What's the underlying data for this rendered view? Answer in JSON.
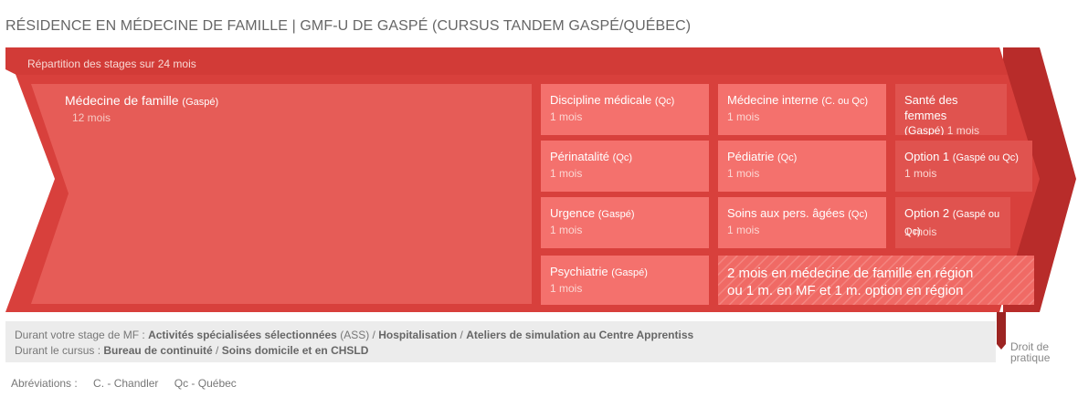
{
  "title": "RÉSIDENCE EN MÉDECINE DE FAMILLE | GMF-U DE GASPÉ (CURSUS TANDEM GASPÉ/QUÉBEC)",
  "period_label": "Répartition des stages sur 24 mois",
  "blocks": {
    "mf": {
      "name": "Médecine de famille",
      "location": "(Gaspé)",
      "duration": "12 mois"
    },
    "discipline": {
      "name": "Discipline médicale",
      "location": "(Qc)",
      "duration": "1 mois"
    },
    "med_interne": {
      "name": "Médecine interne",
      "location": "(C. ou Qc)",
      "duration": "1 mois"
    },
    "sante_femmes": {
      "name": "Santé des femmes",
      "location": "(Gaspé)",
      "duration": "1 mois"
    },
    "perinatalite": {
      "name": "Périnatalité",
      "location": "(Qc)",
      "duration": "1 mois"
    },
    "pediatrie": {
      "name": "Pédiatrie",
      "location": "(Qc)",
      "duration": "1 mois"
    },
    "option1": {
      "name": "Option 1",
      "location": "(Gaspé ou Qc)",
      "duration": "1 mois"
    },
    "urgence": {
      "name": "Urgence",
      "location": "(Gaspé)",
      "duration": "1 mois"
    },
    "soins_ages": {
      "name": "Soins aux pers. âgées",
      "location": "(Qc)",
      "duration": "1 mois"
    },
    "option2": {
      "name": "Option 2",
      "location": "(Gaspé ou Qc)",
      "duration": "1 mois"
    },
    "psychiatrie": {
      "name": "Psychiatrie",
      "location": "(Gaspé)",
      "duration": "1 mois"
    },
    "region": {
      "line1": "2 mois en médecine de famille en région",
      "line2": "ou 1 m. en MF et 1 m. option en région"
    }
  },
  "info_bar": {
    "line1": {
      "prefix": "Durant votre stage de MF : ",
      "b1": "Activités spécialisées sélectionnées",
      "t1": " (ASS) / ",
      "b2": "Hospitalisation",
      "t2": " / ",
      "b3": "Ateliers de simulation au Centre Apprentiss"
    },
    "line2": {
      "prefix": "Durant le cursus : ",
      "b1": "Bureau de continuité",
      "t1": " / ",
      "b2": "Soins domicile et en CHSLD"
    }
  },
  "right_label": {
    "line1": "Droit de",
    "line2": "pratique"
  },
  "abbreviations": {
    "label": "Abréviations :",
    "c": "C. - Chandler",
    "qc": "Qc - Québec"
  },
  "colors": {
    "arrow": "#d8403c",
    "mf": "#e65c57",
    "tile": "#f4716d",
    "tile_dark": "#e0534f",
    "marker": "#9c2422"
  }
}
